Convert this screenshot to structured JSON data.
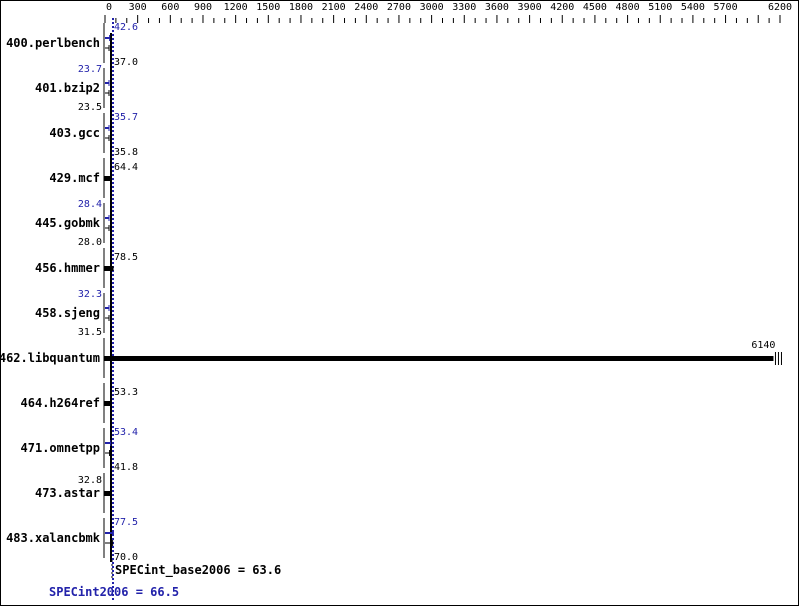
{
  "chart_data": {
    "type": "bar",
    "orientation": "horizontal",
    "xlim": [
      0,
      6200
    ],
    "tick_labels": [
      "0",
      "300",
      "600",
      "900",
      "1200",
      "1500",
      "1800",
      "2100",
      "2400",
      "2700",
      "3000",
      "3300",
      "3600",
      "3900",
      "4200",
      "4500",
      "4800",
      "5100",
      "5400",
      "5700",
      "6200"
    ],
    "categories": [
      "400.perlbench",
      "401.bzip2",
      "403.gcc",
      "429.mcf",
      "445.gobmk",
      "456.hmmer",
      "458.sjeng",
      "462.libquantum",
      "464.h264ref",
      "471.omnetpp",
      "473.astar",
      "483.xalancbmk"
    ],
    "series": [
      {
        "name": "SPECint_base2006",
        "color": "#000000",
        "values": [
          37.0,
          23.5,
          35.8,
          64.4,
          28.0,
          78.5,
          31.5,
          6140,
          53.3,
          41.8,
          32.8,
          70.0
        ]
      },
      {
        "name": "SPECint2006",
        "color": "#2222aa",
        "values": [
          42.6,
          23.7,
          35.7,
          null,
          28.4,
          null,
          32.3,
          null,
          null,
          53.4,
          null,
          77.5
        ]
      }
    ],
    "summary": {
      "base_label": "SPECint_base2006 = 63.6",
      "base_value": 63.6,
      "peak_label": "SPECint2006 = 66.5",
      "peak_value": 66.5
    }
  }
}
